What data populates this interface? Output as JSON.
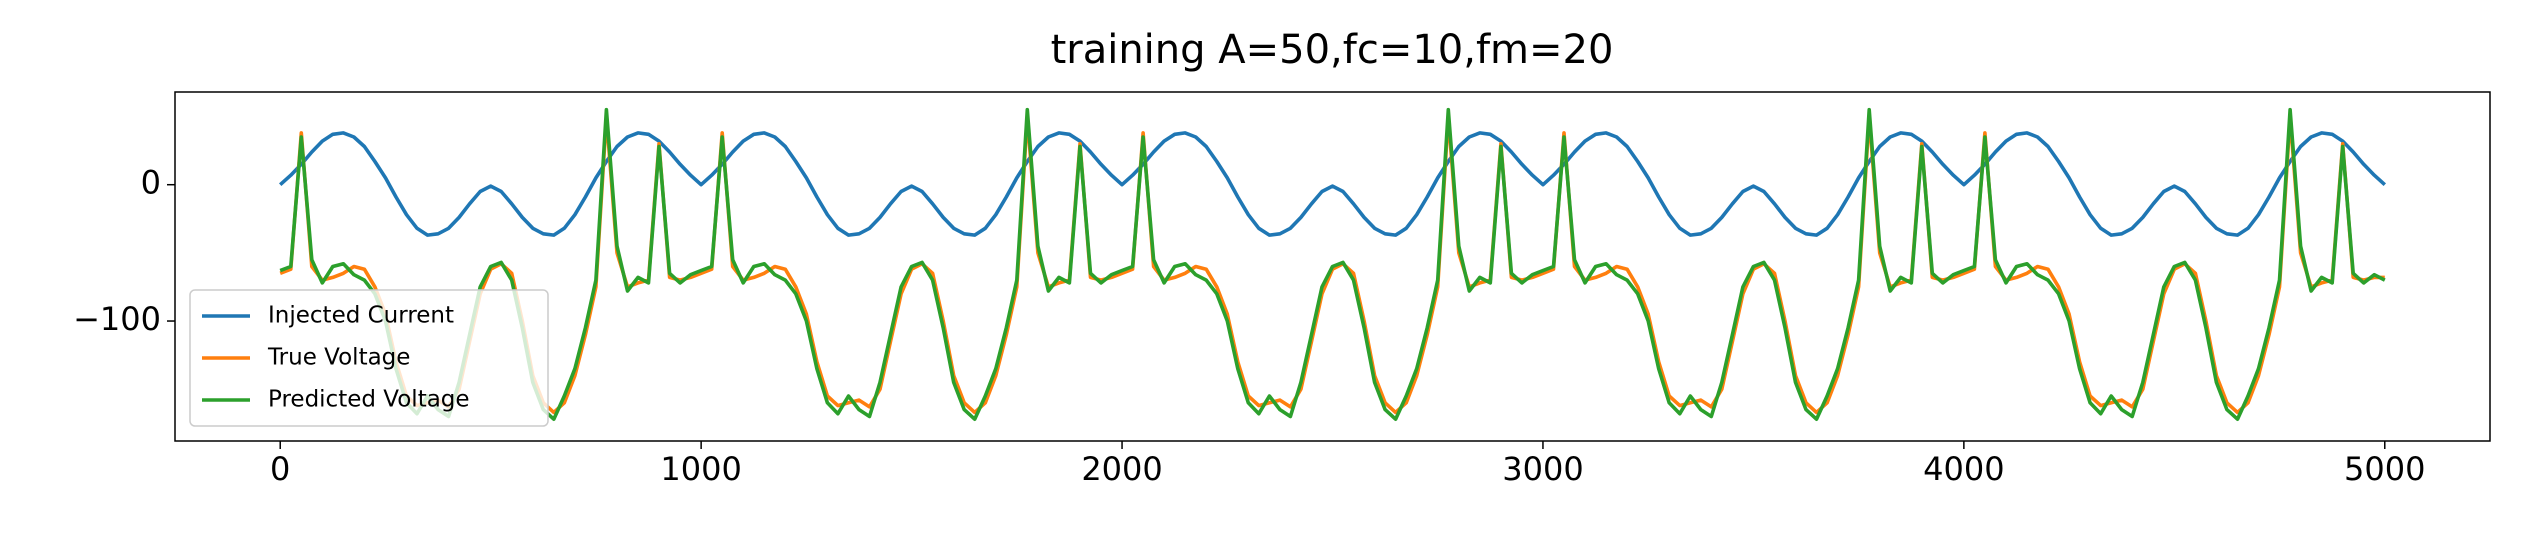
{
  "chart_data": {
    "type": "line",
    "title": "training A=50,fc=10,fm=20",
    "x": [
      0,
      25,
      50,
      75,
      100,
      125,
      150,
      175,
      200,
      225,
      250,
      275,
      300,
      325,
      350,
      375,
      400,
      425,
      450,
      475,
      500,
      525,
      550,
      575,
      600,
      625,
      650,
      675,
      700,
      725,
      750,
      775,
      800,
      825,
      850,
      875,
      900,
      925,
      950,
      975,
      1000,
      1025,
      1050,
      1075,
      1100,
      1125,
      1150,
      1175,
      1200,
      1225,
      1250,
      1275,
      1300,
      1325,
      1350,
      1375,
      1400,
      1425,
      1450,
      1475,
      1500,
      1525,
      1550,
      1575,
      1600,
      1625,
      1650,
      1675,
      1700,
      1725,
      1750,
      1775,
      1800,
      1825,
      1850,
      1875,
      1900,
      1925,
      1950,
      1975,
      2000,
      2025,
      2050,
      2075,
      2100,
      2125,
      2150,
      2175,
      2200,
      2225,
      2250,
      2275,
      2300,
      2325,
      2350,
      2375,
      2400,
      2425,
      2450,
      2475,
      2500,
      2525,
      2550,
      2575,
      2600,
      2625,
      2650,
      2675,
      2700,
      2725,
      2750,
      2775,
      2800,
      2825,
      2850,
      2875,
      2900,
      2925,
      2950,
      2975,
      3000,
      3025,
      3050,
      3075,
      3100,
      3125,
      3150,
      3175,
      3200,
      3225,
      3250,
      3275,
      3300,
      3325,
      3350,
      3375,
      3400,
      3425,
      3450,
      3475,
      3500,
      3525,
      3550,
      3575,
      3600,
      3625,
      3650,
      3675,
      3700,
      3725,
      3750,
      3775,
      3800,
      3825,
      3850,
      3875,
      3900,
      3925,
      3950,
      3975,
      4000,
      4025,
      4050,
      4075,
      4100,
      4125,
      4150,
      4175,
      4200,
      4225,
      4250,
      4275,
      4300,
      4325,
      4350,
      4375,
      4400,
      4425,
      4450,
      4475,
      4500,
      4525,
      4550,
      4575,
      4600,
      4625,
      4650,
      4675,
      4700,
      4725,
      4750,
      4775,
      4800,
      4825,
      4850,
      4875,
      4900,
      4925,
      4950,
      4975,
      5000
    ],
    "series": [
      {
        "name": "Injected Current",
        "color": "#1f77b4",
        "values": [
          0,
          7,
          15,
          24,
          32,
          37,
          38,
          35,
          28,
          17,
          5,
          -9,
          -22,
          -32,
          -37,
          -36,
          -32,
          -24,
          -14,
          -5,
          -1,
          -5,
          -14,
          -24,
          -32,
          -36,
          -37,
          -32,
          -22,
          -9,
          5,
          17,
          28,
          35,
          38,
          37,
          32,
          24,
          15,
          7,
          0,
          7,
          15,
          24,
          32,
          37,
          38,
          35,
          28,
          17,
          5,
          -9,
          -22,
          -32,
          -37,
          -36,
          -32,
          -24,
          -14,
          -5,
          -1,
          -5,
          -14,
          -24,
          -32,
          -36,
          -37,
          -32,
          -22,
          -9,
          5,
          17,
          28,
          35,
          38,
          37,
          32,
          24,
          15,
          7,
          0,
          7,
          15,
          24,
          32,
          37,
          38,
          35,
          28,
          17,
          5,
          -9,
          -22,
          -32,
          -37,
          -36,
          -32,
          -24,
          -14,
          -5,
          -1,
          -5,
          -14,
          -24,
          -32,
          -36,
          -37,
          -32,
          -22,
          -9,
          5,
          17,
          28,
          35,
          38,
          37,
          32,
          24,
          15,
          7,
          0,
          7,
          15,
          24,
          32,
          37,
          38,
          35,
          28,
          17,
          5,
          -9,
          -22,
          -32,
          -37,
          -36,
          -32,
          -24,
          -14,
          -5,
          -1,
          -5,
          -14,
          -24,
          -32,
          -36,
          -37,
          -32,
          -22,
          -9,
          5,
          17,
          28,
          35,
          38,
          37,
          32,
          24,
          15,
          7,
          0,
          7,
          15,
          24,
          32,
          37,
          38,
          35,
          28,
          17,
          5,
          -9,
          -22,
          -32,
          -37,
          -36,
          -32,
          -24,
          -14,
          -5,
          -1,
          -5,
          -14,
          -24,
          -32,
          -36,
          -37,
          -32,
          -22,
          -9,
          5,
          17,
          28,
          35,
          38,
          37,
          32,
          24,
          15,
          7,
          0
        ]
      },
      {
        "name": "True Voltage",
        "color": "#ff7f0e",
        "values": [
          -65,
          -62,
          38,
          -60,
          -70,
          -68,
          -65,
          -60,
          -62,
          -75,
          -95,
          -130,
          -155,
          -162,
          -160,
          -158,
          -163,
          -150,
          -115,
          -80,
          -62,
          -58,
          -65,
          -100,
          -140,
          -160,
          -167,
          -160,
          -140,
          -110,
          -75,
          50,
          -50,
          -75,
          -72,
          -70,
          30,
          -68,
          -70,
          -68,
          -65,
          -62,
          38,
          -60,
          -70,
          -68,
          -65,
          -60,
          -62,
          -75,
          -95,
          -130,
          -155,
          -162,
          -160,
          -158,
          -163,
          -150,
          -115,
          -80,
          -62,
          -58,
          -65,
          -100,
          -140,
          -160,
          -167,
          -160,
          -140,
          -110,
          -75,
          50,
          -50,
          -75,
          -72,
          -70,
          30,
          -68,
          -70,
          -68,
          -65,
          -62,
          38,
          -60,
          -70,
          -68,
          -65,
          -60,
          -62,
          -75,
          -95,
          -130,
          -155,
          -162,
          -160,
          -158,
          -163,
          -150,
          -115,
          -80,
          -62,
          -58,
          -65,
          -100,
          -140,
          -160,
          -167,
          -160,
          -140,
          -110,
          -75,
          50,
          -50,
          -75,
          -72,
          -70,
          30,
          -68,
          -70,
          -68,
          -65,
          -62,
          38,
          -60,
          -70,
          -68,
          -65,
          -60,
          -62,
          -75,
          -95,
          -130,
          -155,
          -162,
          -160,
          -158,
          -163,
          -150,
          -115,
          -80,
          -62,
          -58,
          -65,
          -100,
          -140,
          -160,
          -167,
          -160,
          -140,
          -110,
          -75,
          50,
          -50,
          -75,
          -72,
          -70,
          30,
          -68,
          -70,
          -68,
          -65,
          -62,
          38,
          -60,
          -70,
          -68,
          -65,
          -60,
          -62,
          -75,
          -95,
          -130,
          -155,
          -162,
          -160,
          -158,
          -163,
          -150,
          -115,
          -80,
          -62,
          -58,
          -65,
          -100,
          -140,
          -160,
          -167,
          -160,
          -140,
          -110,
          -75,
          50,
          -50,
          -75,
          -72,
          -70,
          30,
          -68,
          -70,
          -68,
          -68
        ]
      },
      {
        "name": "Predicted Voltage",
        "color": "#2ca02c",
        "values": [
          -63,
          -60,
          35,
          -55,
          -72,
          -60,
          -58,
          -66,
          -70,
          -80,
          -100,
          -135,
          -160,
          -168,
          -155,
          -165,
          -170,
          -145,
          -110,
          -75,
          -60,
          -57,
          -70,
          -105,
          -145,
          -165,
          -172,
          -155,
          -135,
          -105,
          -70,
          55,
          -45,
          -78,
          -68,
          -72,
          28,
          -65,
          -72,
          -66,
          -63,
          -60,
          35,
          -55,
          -72,
          -60,
          -58,
          -66,
          -70,
          -80,
          -100,
          -135,
          -160,
          -168,
          -155,
          -165,
          -170,
          -145,
          -110,
          -75,
          -60,
          -57,
          -70,
          -105,
          -145,
          -165,
          -172,
          -155,
          -135,
          -105,
          -70,
          55,
          -45,
          -78,
          -68,
          -72,
          28,
          -65,
          -72,
          -66,
          -63,
          -60,
          35,
          -55,
          -72,
          -60,
          -58,
          -66,
          -70,
          -80,
          -100,
          -135,
          -160,
          -168,
          -155,
          -165,
          -170,
          -145,
          -110,
          -75,
          -60,
          -57,
          -70,
          -105,
          -145,
          -165,
          -172,
          -155,
          -135,
          -105,
          -70,
          55,
          -45,
          -78,
          -68,
          -72,
          28,
          -65,
          -72,
          -66,
          -63,
          -60,
          35,
          -55,
          -72,
          -60,
          -58,
          -66,
          -70,
          -80,
          -100,
          -135,
          -160,
          -168,
          -155,
          -165,
          -170,
          -145,
          -110,
          -75,
          -60,
          -57,
          -70,
          -105,
          -145,
          -165,
          -172,
          -155,
          -135,
          -105,
          -70,
          55,
          -45,
          -78,
          -68,
          -72,
          28,
          -65,
          -72,
          -66,
          -63,
          -60,
          35,
          -55,
          -72,
          -60,
          -58,
          -66,
          -70,
          -80,
          -100,
          -135,
          -160,
          -168,
          -155,
          -165,
          -170,
          -145,
          -110,
          -75,
          -60,
          -57,
          -70,
          -105,
          -145,
          -165,
          -172,
          -155,
          -135,
          -105,
          -70,
          55,
          -45,
          -78,
          -68,
          -72,
          28,
          -65,
          -72,
          -66,
          -70
        ]
      }
    ],
    "xlim": [
      -250,
      5250
    ],
    "xticks": [
      0,
      1000,
      2000,
      3000,
      4000,
      5000
    ],
    "ylim": [
      -188,
      68
    ],
    "yticks": [
      {
        "value": -100,
        "label": "−100"
      },
      0
    ],
    "grid": false,
    "legend": "lower left"
  }
}
